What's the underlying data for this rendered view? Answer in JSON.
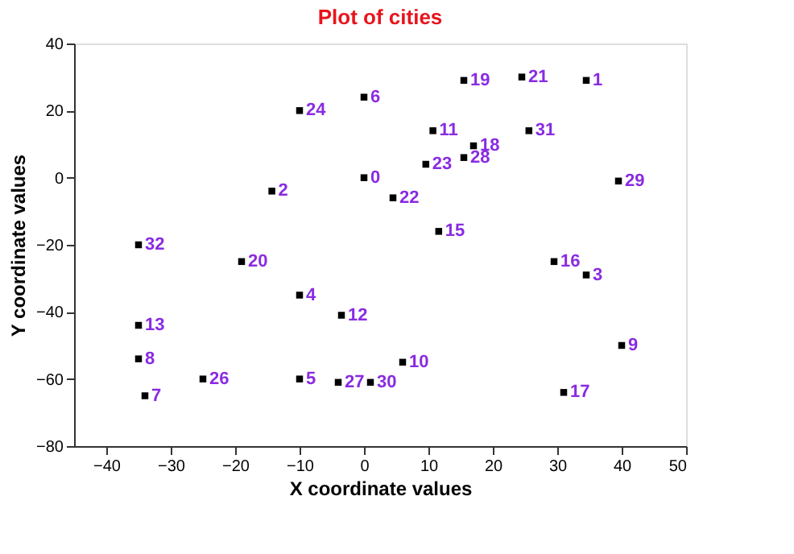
{
  "chart_data": {
    "type": "scatter",
    "title": "Plot of cities",
    "xlabel": "X coordinate values",
    "ylabel": "Y coordinate values",
    "xlim": [
      -45,
      50
    ],
    "xticks": [
      -40,
      -30,
      -20,
      -10,
      0,
      10,
      20,
      30,
      40,
      50
    ],
    "ylim": [
      -80,
      40
    ],
    "yticks": [
      -80,
      -60,
      -40,
      -20,
      0,
      20,
      40
    ],
    "grid": false,
    "marker": "square",
    "series": [
      {
        "color": "#000000",
        "x": [
          0,
          34.5,
          -14.3,
          34.5,
          -10,
          -10,
          0,
          -34,
          -35,
          40,
          6,
          10.7,
          -3.5,
          -35,
          11.6,
          29.5,
          31,
          17,
          15.5,
          -19,
          24.5,
          4.5,
          9.6,
          -10,
          -25,
          15.5,
          -4,
          25.6,
          39.5,
          1,
          -35
        ],
        "values": [
          0,
          29,
          -4,
          -29,
          -35,
          -60,
          24,
          -65,
          -54,
          -50,
          -55,
          14,
          -41,
          -44,
          -16,
          -25,
          -64,
          9.5,
          29,
          -25,
          30,
          -6,
          4,
          20,
          -60,
          6,
          -61,
          14,
          -1,
          -61,
          -20
        ]
      }
    ],
    "annotations": [
      {
        "text": "0",
        "x": 0,
        "y": 0
      },
      {
        "text": "1",
        "x": 34.5,
        "y": 29
      },
      {
        "text": "2",
        "x": -14.3,
        "y": -4
      },
      {
        "text": "3",
        "x": 34.5,
        "y": -29
      },
      {
        "text": "4",
        "x": -10,
        "y": -35
      },
      {
        "text": "5",
        "x": -10,
        "y": -60
      },
      {
        "text": "6",
        "x": 0,
        "y": 24
      },
      {
        "text": "7",
        "x": -34,
        "y": -65
      },
      {
        "text": "8",
        "x": -35,
        "y": -54
      },
      {
        "text": "9",
        "x": 40,
        "y": -50
      },
      {
        "text": "10",
        "x": 6,
        "y": -55
      },
      {
        "text": "11",
        "x": 10.7,
        "y": 14
      },
      {
        "text": "12",
        "x": -3.5,
        "y": -41
      },
      {
        "text": "13",
        "x": -35,
        "y": -44
      },
      {
        "text": "15",
        "x": 11.6,
        "y": -16
      },
      {
        "text": "16",
        "x": 29.5,
        "y": -25
      },
      {
        "text": "17",
        "x": 31,
        "y": -64
      },
      {
        "text": "18",
        "x": 17,
        "y": 9.5
      },
      {
        "text": "19",
        "x": 15.5,
        "y": 29
      },
      {
        "text": "20",
        "x": -19,
        "y": -25
      },
      {
        "text": "21",
        "x": 24.5,
        "y": 30
      },
      {
        "text": "22",
        "x": 4.5,
        "y": -6
      },
      {
        "text": "23",
        "x": 9.6,
        "y": 4
      },
      {
        "text": "24",
        "x": -10,
        "y": 20
      },
      {
        "text": "26",
        "x": -25,
        "y": -60
      },
      {
        "text": "28",
        "x": 15.5,
        "y": 6
      },
      {
        "text": "27",
        "x": -4,
        "y": -61
      },
      {
        "text": "31",
        "x": 25.6,
        "y": 14
      },
      {
        "text": "29",
        "x": 39.5,
        "y": -1
      },
      {
        "text": "30",
        "x": 1,
        "y": -61
      },
      {
        "text": "32",
        "x": -35,
        "y": -20
      }
    ]
  }
}
